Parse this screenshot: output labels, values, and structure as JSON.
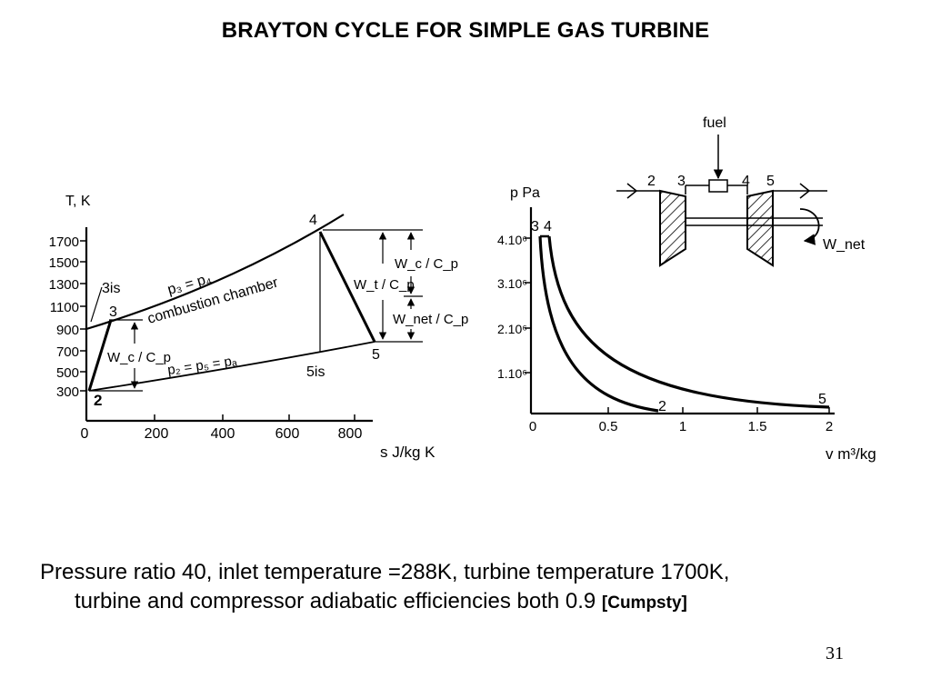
{
  "slide": {
    "title": "BRAYTON CYCLE FOR SIMPLE GAS TURBINE",
    "page_number": "31"
  },
  "caption": {
    "line1": "Pressure ratio 40, inlet temperature =288K, turbine temperature 1700K,",
    "line2": "turbine and compressor adiabatic efficiencies both 0.9",
    "citation": "[Cumpsty]"
  },
  "ts_diagram": {
    "y_axis_label": "T, K",
    "x_axis_label": "s  J/kg K",
    "y_ticks": [
      "300",
      "500",
      "700",
      "900",
      "1100",
      "1300",
      "1500",
      "1700"
    ],
    "x_ticks": [
      "0",
      "200",
      "400",
      "600",
      "800"
    ],
    "points": {
      "p2": "2",
      "p3": "3",
      "p3is": "3is",
      "p4": "4",
      "p5": "5",
      "p5is": "5is"
    },
    "labels": {
      "high_isobar": "p₃ = p₄",
      "chamber": "combustion chamber",
      "low_isobar": "p₂ = p₅ = pₐ",
      "compressor_work": "W_c / C_p",
      "turbine_work": "W_t / C_p",
      "compressor_work_right": "W_c / C_p",
      "net_work": "W_net / C_p"
    }
  },
  "pv_diagram": {
    "y_axis_label": "p Pa",
    "x_axis_label": "v  m³/kg",
    "y_ticks": [
      "1.10⁶",
      "2.10⁶",
      "3.10⁶",
      "4.10⁶"
    ],
    "x_ticks": [
      "0",
      "0.5",
      "1",
      "1.5",
      "2"
    ],
    "points": {
      "p2": "2",
      "p3": "3",
      "p4": "4",
      "p5": "5"
    }
  },
  "engine_schematic": {
    "fuel_label": "fuel",
    "station_labels": [
      "2",
      "3",
      "4",
      "5"
    ],
    "net_work_label": "W_net"
  }
}
